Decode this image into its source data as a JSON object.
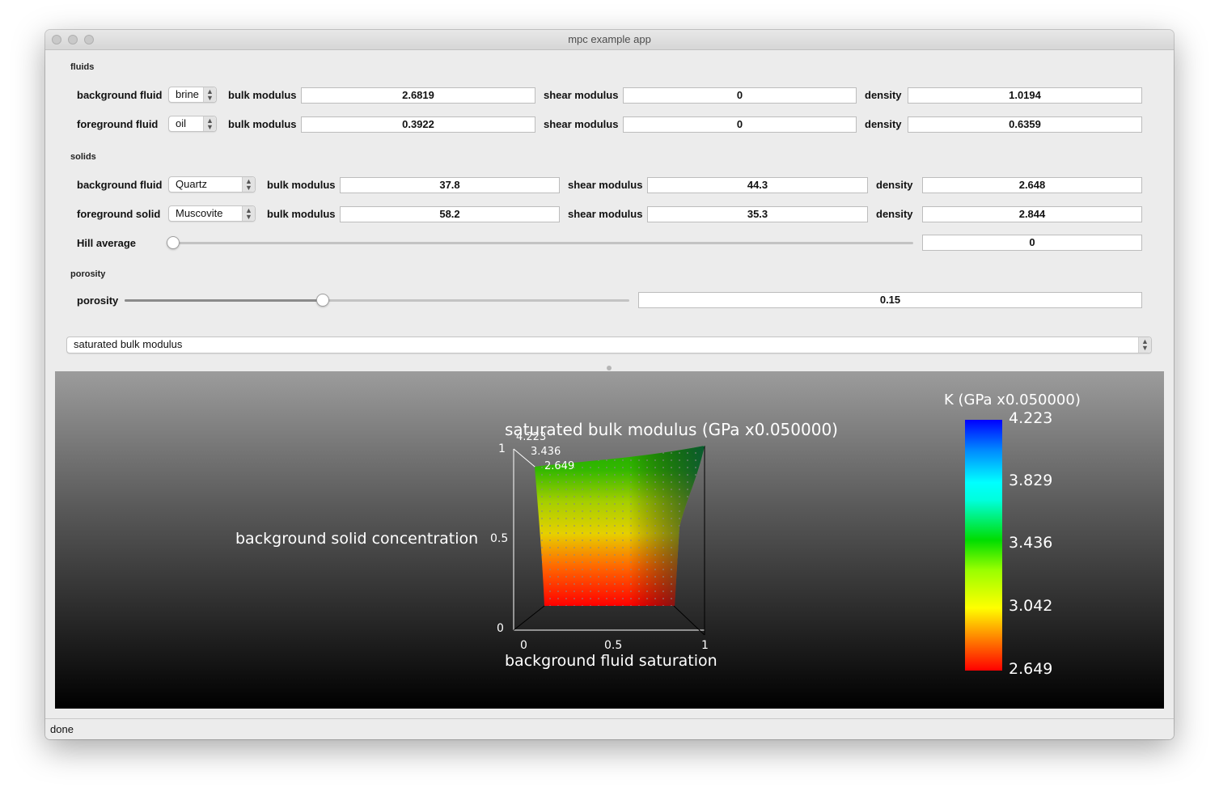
{
  "window": {
    "title": "mpc example app"
  },
  "fluids": {
    "section_label": "fluids",
    "background": {
      "label": "background fluid",
      "type": "brine",
      "bulk_label": "bulk modulus",
      "bulk": "2.6819",
      "shear_label": "shear modulus",
      "shear": "0",
      "density_label": "density",
      "density": "1.0194"
    },
    "foreground": {
      "label": "foreground fluid",
      "type": "oil",
      "bulk_label": "bulk modulus",
      "bulk": "0.3922",
      "shear_label": "shear modulus",
      "shear": "0",
      "density_label": "density",
      "density": "0.6359"
    }
  },
  "solids": {
    "section_label": "solids",
    "background": {
      "label": "background fluid",
      "type": "Quartz",
      "bulk_label": "bulk modulus",
      "bulk": "37.8",
      "shear_label": "shear modulus",
      "shear": "44.3",
      "density_label": "density",
      "density": "2.648"
    },
    "foreground": {
      "label": "foreground solid",
      "type": "Muscovite",
      "bulk_label": "bulk modulus",
      "bulk": "58.2",
      "shear_label": "shear modulus",
      "shear": "35.3",
      "density_label": "density",
      "density": "2.844"
    },
    "hill": {
      "label": "Hill average",
      "value": "0",
      "level": 0.0
    }
  },
  "porosity": {
    "section_label": "porosity",
    "label": "porosity",
    "value": "0.15",
    "level": 0.39
  },
  "property_select": {
    "value": "saturated bulk modulus"
  },
  "plot": {
    "title": "saturated bulk modulus (GPa x0.050000)",
    "xlabel": "background fluid saturation",
    "ylabel": "background solid concentration",
    "x_ticks": [
      "0",
      "0.5",
      "1"
    ],
    "y_ticks": [
      "0",
      "0.5",
      "1"
    ],
    "z_ticks": [
      "4.223",
      "3.436",
      "2.649"
    ],
    "colorbar": {
      "title": "K (GPa x0.050000)",
      "labels": [
        "4.223",
        "3.829",
        "3.436",
        "3.042",
        "2.649"
      ]
    }
  },
  "status": {
    "text": "done"
  },
  "colors": {
    "window_bg": "#ececec",
    "field_bg": "#ffffff",
    "low": "#ff0000",
    "mid": "#ffff00",
    "high": "#0000ff"
  }
}
